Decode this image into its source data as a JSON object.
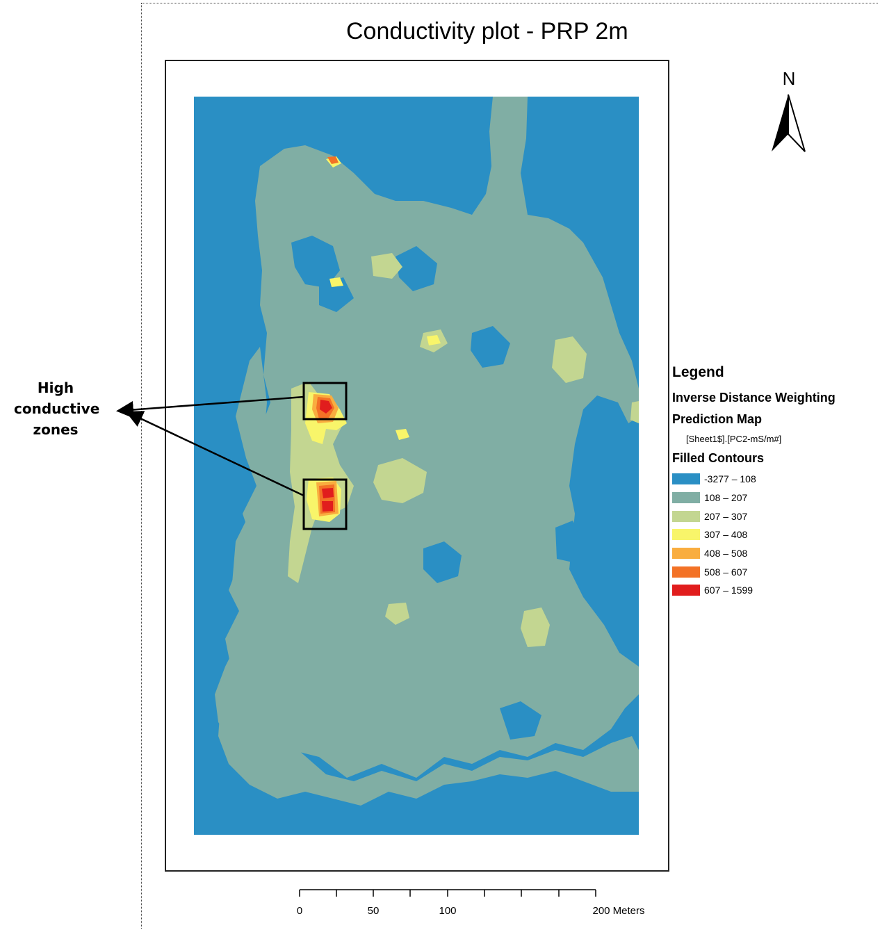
{
  "map": {
    "title": "Conductivity plot - PRP 2m",
    "north_label": "N",
    "colors": {
      "c0": "#2a8fc4",
      "c1": "#80aea4",
      "c2": "#c3d691",
      "c3": "#f8f56a",
      "c4": "#f9ad3f",
      "c5": "#f37226",
      "c6": "#e11d1d"
    }
  },
  "legend": {
    "title": "Legend",
    "layer": "Inverse Distance Weighting",
    "sublayer": "Prediction Map",
    "field": "[Sheet1$].[PC2-mS/m#]",
    "group": "Filled Contours",
    "classes": [
      {
        "label": "-3277 – 108",
        "color": "#2a8fc4"
      },
      {
        "label": "108 – 207",
        "color": "#80aea4"
      },
      {
        "label": "207 – 307",
        "color": "#c3d691"
      },
      {
        "label": "307 – 408",
        "color": "#f8f56a"
      },
      {
        "label": "408 – 508",
        "color": "#f9ad3f"
      },
      {
        "label": "508 – 607",
        "color": "#f37226"
      },
      {
        "label": "607 – 1599",
        "color": "#e11d1d"
      }
    ]
  },
  "annotation": {
    "label_lines": [
      "High",
      "conductive",
      "zones"
    ]
  },
  "scale_bar": {
    "ticks": [
      "0",
      "50",
      "100",
      "200 Meters"
    ]
  }
}
